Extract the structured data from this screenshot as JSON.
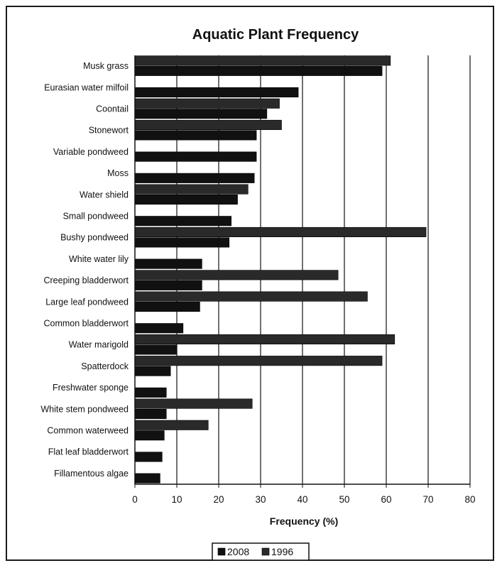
{
  "chart_data": {
    "type": "bar",
    "orientation": "horizontal",
    "title": "Aquatic Plant Frequency",
    "xlabel": "Frequency (%)",
    "ylabel": "",
    "xlim": [
      0,
      80
    ],
    "ticks": [
      "0",
      "10",
      "20",
      "30",
      "40",
      "50",
      "60",
      "70",
      "80"
    ],
    "grid": true,
    "legend_position": "bottom",
    "categories": [
      "Musk grass",
      "Eurasian water milfoil",
      "Coontail",
      "Stonewort",
      "Variable pondweed",
      "Moss",
      "Water shield",
      "Small pondweed",
      "Bushy pondweed",
      "White water lily",
      "Creeping bladderwort",
      "Large leaf pondweed",
      "Common bladderwort",
      "Water marigold",
      "Spatterdock",
      "Freshwater sponge",
      "White stem pondweed",
      "Common waterweed",
      "Flat leaf bladderwort",
      "Fillamentous algae"
    ],
    "series": [
      {
        "name": "2008",
        "color": "#111111",
        "values": [
          59,
          39,
          31.5,
          29,
          29,
          28.5,
          24.5,
          23,
          22.5,
          16,
          16,
          15.5,
          11.5,
          10,
          8.5,
          7.5,
          7.5,
          7,
          6.5,
          6
        ]
      },
      {
        "name": "1996",
        "color": "#2a2a2a",
        "values": [
          61,
          0,
          34.5,
          35,
          0,
          0,
          27,
          0,
          69.5,
          0,
          48.5,
          55.5,
          0,
          62,
          59,
          0,
          28,
          17.5,
          0,
          0
        ]
      }
    ]
  }
}
